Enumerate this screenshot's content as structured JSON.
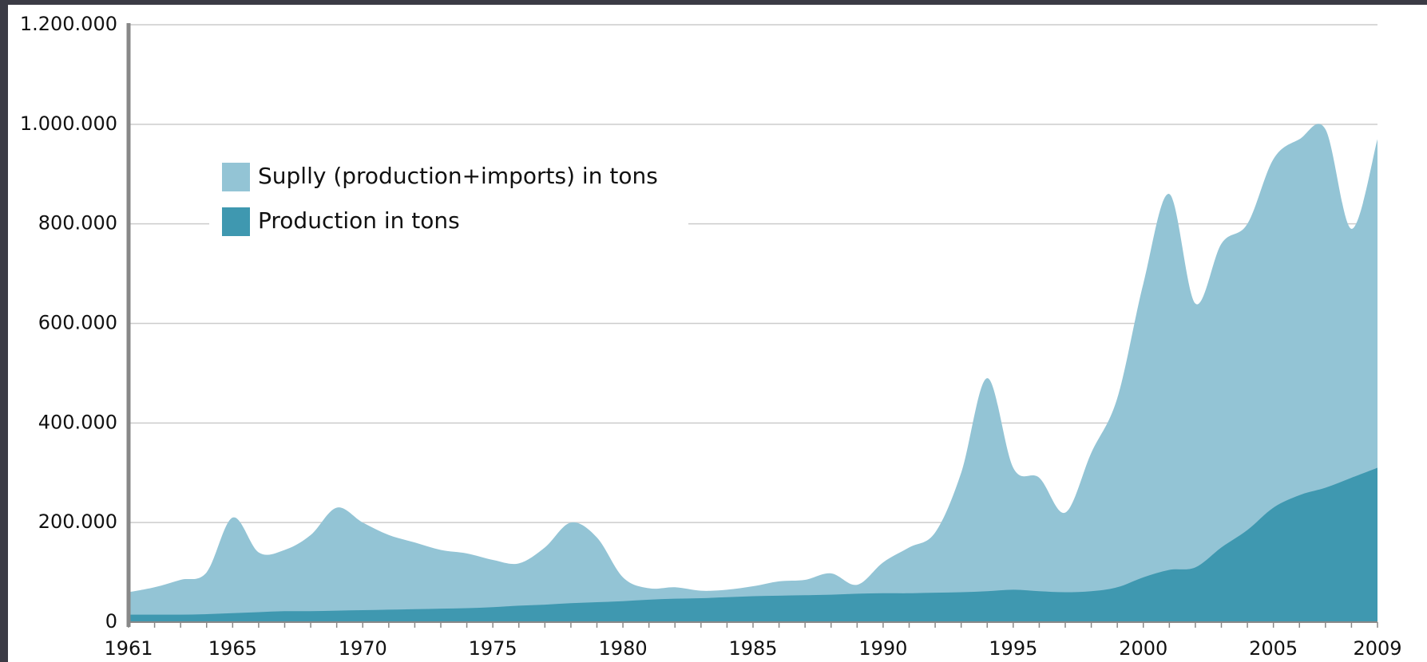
{
  "chart_data": {
    "type": "area",
    "x": [
      1961,
      1962,
      1963,
      1964,
      1965,
      1966,
      1967,
      1968,
      1969,
      1970,
      1971,
      1972,
      1973,
      1974,
      1975,
      1976,
      1977,
      1978,
      1979,
      1980,
      1981,
      1982,
      1983,
      1984,
      1985,
      1986,
      1987,
      1988,
      1989,
      1990,
      1991,
      1992,
      1993,
      1994,
      1995,
      1996,
      1997,
      1998,
      1999,
      2000,
      2001,
      2002,
      2003,
      2004,
      2005,
      2006,
      2007,
      2008,
      2009
    ],
    "series": [
      {
        "name": "Suplly (production+imports) in tons",
        "color": "#93c4d5",
        "values": [
          60000,
          70000,
          85000,
          100000,
          210000,
          140000,
          145000,
          175000,
          230000,
          200000,
          175000,
          160000,
          145000,
          138000,
          125000,
          118000,
          150000,
          200000,
          170000,
          90000,
          68000,
          70000,
          63000,
          65000,
          72000,
          82000,
          85000,
          98000,
          75000,
          120000,
          150000,
          180000,
          300000,
          490000,
          310000,
          290000,
          220000,
          340000,
          450000,
          680000,
          860000,
          640000,
          760000,
          800000,
          930000,
          970000,
          990000,
          790000,
          970000
        ]
      },
      {
        "name": "Production in tons",
        "color": "#3f98b0",
        "values": [
          15000,
          15000,
          15000,
          16000,
          18000,
          20000,
          22000,
          22000,
          23000,
          24000,
          25000,
          26000,
          27000,
          28000,
          30000,
          33000,
          35000,
          38000,
          40000,
          42000,
          45000,
          47000,
          48000,
          50000,
          52000,
          53000,
          54000,
          55000,
          57000,
          58000,
          58000,
          59000,
          60000,
          62000,
          65000,
          62000,
          60000,
          62000,
          70000,
          90000,
          105000,
          110000,
          150000,
          185000,
          230000,
          255000,
          270000,
          290000,
          310000
        ]
      }
    ],
    "xlim": [
      1961,
      2009
    ],
    "xticks": [
      1961,
      1965,
      1970,
      1975,
      1980,
      1985,
      1990,
      1995,
      2000,
      2005,
      2009
    ],
    "ylim": [
      0,
      1200000
    ],
    "yticks": [
      0,
      {
        "value": 200000,
        "label": "200.000"
      },
      {
        "value": 400000,
        "label": "400.000"
      },
      {
        "value": 600000,
        "label": "600.000"
      },
      {
        "value": 800000,
        "label": "800.000"
      },
      {
        "value": 1000000,
        "label": "1.000.000"
      },
      {
        "value": 1200000,
        "label": "1.200.000"
      }
    ],
    "grid": true,
    "legend": "upper left"
  }
}
